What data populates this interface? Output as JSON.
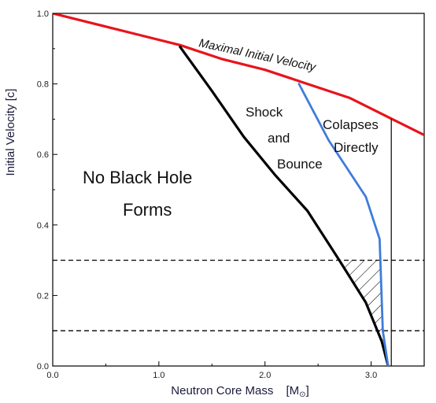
{
  "chart_data": {
    "type": "line",
    "xlabel": "Neutron Core Mass",
    "xlabel_unit": "[M",
    "xlabel_unit_sub": "⊙",
    "xlabel_unit_close": "]",
    "ylabel": "Initial Velocity   [c]",
    "xlim": [
      0,
      3.5
    ],
    "ylim": [
      0,
      1.0
    ],
    "xticks": [
      "0.0",
      "1.0",
      "2.0",
      "3.0"
    ],
    "yticks": [
      "0.0",
      "0.2",
      "0.4",
      "0.6",
      "0.8",
      "1.0"
    ],
    "xtick_values": [
      0,
      1,
      2,
      3
    ],
    "ytick_values": [
      0,
      0.2,
      0.4,
      0.6,
      0.8,
      1.0
    ],
    "grid": false,
    "series": [
      {
        "name": "Maximal Initial Velocity",
        "color": "#e8141b",
        "x": [
          0.0,
          0.4,
          0.8,
          1.2,
          1.6,
          2.0,
          2.4,
          2.8,
          3.2,
          3.5
        ],
        "y": [
          1.0,
          0.97,
          0.94,
          0.91,
          0.87,
          0.84,
          0.8,
          0.76,
          0.7,
          0.655
        ]
      },
      {
        "name": "Shock and Bounce",
        "color": "#000000",
        "x": [
          1.2,
          1.5,
          1.8,
          2.1,
          2.4,
          2.7,
          2.95,
          3.1,
          3.16
        ],
        "y": [
          0.905,
          0.78,
          0.65,
          0.54,
          0.44,
          0.3,
          0.18,
          0.07,
          0.0
        ]
      },
      {
        "name": "Colapses Directly",
        "color": "#3f7cdc",
        "x": [
          2.32,
          2.6,
          2.95,
          3.08,
          3.11,
          3.16
        ],
        "y": [
          0.8,
          0.64,
          0.48,
          0.36,
          0.1,
          0.0
        ]
      },
      {
        "name": "vertical boundary",
        "color": "#000000",
        "x": [
          3.19,
          3.19
        ],
        "y": [
          0.0,
          0.7
        ]
      }
    ],
    "reference_lines": {
      "style": "dashed",
      "y": [
        0.3,
        0.1
      ]
    },
    "hatched_region": {
      "x_left": [
        2.7,
        2.95,
        3.1,
        3.16
      ],
      "y_left": [
        0.3,
        0.18,
        0.07,
        0.0
      ],
      "x_right": [
        3.09,
        3.1,
        3.11,
        3.16
      ],
      "y_right": [
        0.3,
        0.2,
        0.1,
        0.0
      ]
    },
    "annotations": [
      {
        "text": "Maximal Initial Velocity",
        "italic": true
      },
      {
        "text": "Shock"
      },
      {
        "text": "and"
      },
      {
        "text": "Bounce"
      },
      {
        "text": "Colapses"
      },
      {
        "text": "Directly"
      },
      {
        "text": "No Black Hole"
      },
      {
        "text": "Forms"
      }
    ]
  }
}
